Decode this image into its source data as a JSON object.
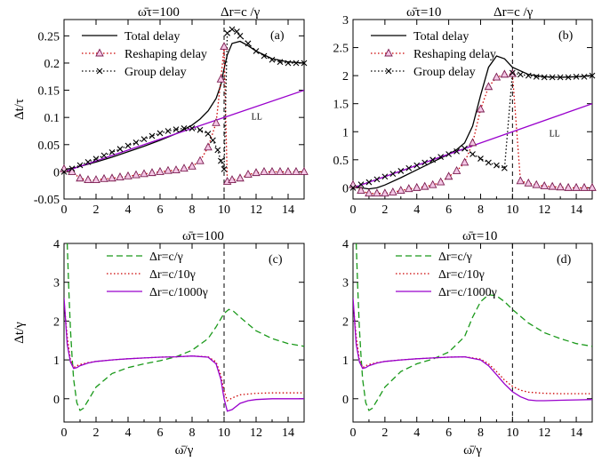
{
  "chart_data": [
    {
      "id": "a",
      "type": "line",
      "panel_label": "(a)",
      "header_left": "ω̄τ=100",
      "header_right": "Δr=c /γ",
      "xlabel": "",
      "ylabel": "Δt/τ",
      "xlim": [
        0,
        15
      ],
      "ylim": [
        -0.05,
        0.28
      ],
      "xticks": [
        0,
        2,
        4,
        6,
        8,
        10,
        12,
        14
      ],
      "xtick_labels": [
        "0",
        "2",
        "4",
        "6",
        "8",
        "10",
        "12",
        "14"
      ],
      "yticks": [
        -0.05,
        0,
        0.05,
        0.1,
        0.15,
        0.2,
        0.25
      ],
      "ytick_labels": [
        "-0.05",
        "0",
        "0.05",
        "0.1",
        "0.15",
        "0.2",
        "0.25"
      ],
      "vline": 10,
      "grid": false,
      "legend_position": "top-left",
      "annotation": {
        "text": "LL",
        "x": 11.7,
        "y": 0.096
      },
      "series": [
        {
          "name": "Total delay",
          "style": "solid",
          "color": "#000000",
          "x": [
            0,
            0.5,
            1,
            2,
            3,
            4,
            5,
            6,
            7,
            8,
            8.5,
            9,
            9.5,
            9.8,
            10,
            10.2,
            10.5,
            11,
            11.5,
            12,
            13,
            14,
            15
          ],
          "y": [
            0.005,
            0.006,
            0.01,
            0.018,
            0.027,
            0.037,
            0.047,
            0.058,
            0.07,
            0.086,
            0.097,
            0.112,
            0.135,
            0.16,
            0.19,
            0.215,
            0.236,
            0.24,
            0.232,
            0.222,
            0.208,
            0.202,
            0.2
          ]
        },
        {
          "name": "Reshaping delay",
          "style": "dotted-triangle",
          "color": "#cc0000",
          "x": [
            0,
            0.5,
            1,
            1.5,
            2,
            2.5,
            3,
            3.5,
            4,
            4.5,
            5,
            5.5,
            6,
            6.5,
            7,
            7.5,
            8,
            8.5,
            9,
            9.5,
            9.8,
            10,
            10.2,
            10.5,
            11,
            11.5,
            12,
            12.5,
            13,
            13.5,
            14,
            14.5,
            15
          ],
          "y": [
            0.005,
            0.0,
            -0.012,
            -0.015,
            -0.015,
            -0.013,
            -0.012,
            -0.01,
            -0.008,
            -0.006,
            -0.004,
            -0.002,
            0.0,
            0.002,
            0.003,
            0.006,
            0.01,
            0.02,
            0.045,
            0.09,
            0.17,
            0.23,
            -0.018,
            -0.015,
            -0.012,
            -0.005,
            -0.002,
            0.0,
            0.0,
            0.0,
            0.0,
            0.0,
            0.0
          ]
        },
        {
          "name": "Group delay",
          "style": "dotted-cross",
          "color": "#000000",
          "x": [
            0,
            0.5,
            1,
            1.5,
            2,
            2.5,
            3,
            3.5,
            4,
            4.5,
            5,
            5.5,
            6,
            6.5,
            7,
            7.5,
            8,
            8.5,
            9,
            9.3,
            9.6,
            9.8,
            10,
            10.2,
            10.5,
            10.8,
            11,
            11.5,
            12,
            12.5,
            13,
            13.5,
            14,
            14.5,
            15
          ],
          "y": [
            0.0,
            0.006,
            0.012,
            0.018,
            0.024,
            0.03,
            0.036,
            0.042,
            0.048,
            0.054,
            0.06,
            0.066,
            0.071,
            0.075,
            0.078,
            0.08,
            0.08,
            0.077,
            0.07,
            0.058,
            0.04,
            0.02,
            0.005,
            0.255,
            0.262,
            0.258,
            0.25,
            0.236,
            0.222,
            0.213,
            0.206,
            0.202,
            0.2,
            0.2,
            0.2
          ]
        },
        {
          "name": "LL",
          "style": "solid",
          "color": "#9900cc",
          "in_legend": false,
          "x": [
            0,
            15
          ],
          "y": [
            0.0,
            0.15
          ]
        }
      ]
    },
    {
      "id": "b",
      "type": "line",
      "panel_label": "(b)",
      "header_left": "ω̄τ=10",
      "header_right": "Δr=c /γ",
      "xlabel": "",
      "ylabel": "",
      "xlim": [
        0,
        15
      ],
      "ylim": [
        -0.2,
        3
      ],
      "xticks": [
        0,
        2,
        4,
        6,
        8,
        10,
        12,
        14
      ],
      "xtick_labels": [
        "0",
        "2",
        "4",
        "6",
        "8",
        "10",
        "12",
        "14"
      ],
      "yticks": [
        0,
        0.5,
        1,
        1.5,
        2,
        2.5,
        3
      ],
      "ytick_labels": [
        "0",
        "0.5",
        "1",
        "1.5",
        "2",
        "2.5",
        "3"
      ],
      "vline": 10,
      "grid": false,
      "legend_position": "top-left",
      "annotation": {
        "text": "LL",
        "x": 12.3,
        "y": 0.92
      },
      "series": [
        {
          "name": "Total delay",
          "style": "solid",
          "color": "#000000",
          "x": [
            0,
            0.5,
            1,
            1.5,
            2,
            3,
            4,
            5,
            6,
            6.5,
            7,
            7.5,
            8,
            8.5,
            9,
            9.5,
            10,
            11,
            12,
            13,
            14,
            15
          ],
          "y": [
            0.02,
            0.0,
            -0.02,
            0.0,
            0.05,
            0.18,
            0.32,
            0.46,
            0.6,
            0.68,
            0.8,
            1.1,
            1.65,
            2.15,
            2.35,
            2.3,
            2.15,
            2.02,
            1.98,
            1.97,
            1.98,
            2.0
          ]
        },
        {
          "name": "Reshaping delay",
          "style": "dotted-triangle",
          "color": "#cc0000",
          "x": [
            0,
            0.5,
            1,
            1.5,
            2,
            2.5,
            3,
            3.5,
            4,
            4.5,
            5,
            5.5,
            6,
            6.5,
            7,
            7.5,
            8,
            8.5,
            9,
            9.5,
            10,
            10.5,
            11,
            11.5,
            12,
            12.5,
            13,
            13.5,
            14,
            14.5,
            15
          ],
          "y": [
            0.05,
            -0.05,
            -0.1,
            -0.1,
            -0.1,
            -0.08,
            -0.05,
            -0.02,
            0.0,
            0.02,
            0.05,
            0.1,
            0.2,
            0.3,
            0.45,
            0.8,
            1.4,
            1.8,
            1.97,
            2.02,
            2.03,
            0.12,
            0.08,
            0.05,
            0.03,
            0.02,
            0.01,
            0.0,
            0.0,
            0.0,
            0.0
          ]
        },
        {
          "name": "Group delay",
          "style": "dotted-cross",
          "color": "#000000",
          "x": [
            0,
            0.5,
            1,
            1.5,
            2,
            2.5,
            3,
            3.5,
            4,
            4.5,
            5,
            5.5,
            6,
            6.5,
            7,
            7.5,
            8,
            8.5,
            9,
            9.5,
            10,
            10.5,
            11,
            11.5,
            12,
            12.5,
            13,
            13.5,
            14,
            14.5,
            15
          ],
          "y": [
            0.0,
            0.06,
            0.1,
            0.15,
            0.2,
            0.25,
            0.3,
            0.35,
            0.4,
            0.45,
            0.5,
            0.55,
            0.6,
            0.65,
            0.7,
            0.6,
            0.52,
            0.45,
            0.4,
            0.35,
            2.05,
            2.02,
            2.0,
            1.98,
            1.97,
            1.97,
            1.97,
            1.97,
            1.98,
            1.98,
            2.0
          ]
        },
        {
          "name": "LL",
          "style": "solid",
          "color": "#9900cc",
          "in_legend": false,
          "x": [
            0,
            15
          ],
          "y": [
            0.0,
            1.5
          ]
        }
      ]
    },
    {
      "id": "c",
      "type": "line",
      "panel_label": "(c)",
      "header_left": "ω̄τ=100",
      "header_right": "",
      "xlabel": "ω̄/γ",
      "ylabel": "Δt/γ",
      "xlim": [
        0,
        15
      ],
      "ylim": [
        -0.6,
        4
      ],
      "xticks": [
        0,
        2,
        4,
        6,
        8,
        10,
        12,
        14
      ],
      "xtick_labels": [
        "0",
        "2",
        "4",
        "6",
        "8",
        "10",
        "12",
        "14"
      ],
      "yticks": [
        0,
        1,
        2,
        3,
        4
      ],
      "ytick_labels": [
        "0",
        "1",
        "2",
        "3",
        "4"
      ],
      "vline": 10,
      "grid": false,
      "legend_position": "top-center",
      "series": [
        {
          "name": "Δr=c/γ",
          "style": "dashed",
          "color": "#1a991a",
          "x": [
            0.2,
            0.3,
            0.4,
            0.5,
            0.6,
            0.8,
            1.0,
            1.2,
            1.5,
            2,
            3,
            4,
            5,
            6,
            7,
            8,
            9,
            9.5,
            10,
            10.3,
            10.6,
            11,
            12,
            13,
            14,
            15
          ],
          "y": [
            4.0,
            2.8,
            1.8,
            1.1,
            0.5,
            -0.1,
            -0.3,
            -0.25,
            -0.05,
            0.3,
            0.65,
            0.8,
            0.9,
            0.98,
            1.08,
            1.25,
            1.55,
            1.85,
            2.2,
            2.3,
            2.25,
            2.1,
            1.75,
            1.55,
            1.42,
            1.35
          ]
        },
        {
          "name": "Δr=c/10γ",
          "style": "dotted",
          "color": "#cc0000",
          "x": [
            0,
            0.2,
            0.4,
            0.6,
            0.8,
            1.0,
            1.5,
            2,
            3,
            4,
            5,
            6,
            7,
            8,
            9,
            9.5,
            9.8,
            10,
            10.2,
            10.5,
            11,
            12,
            13,
            14,
            15
          ],
          "y": [
            2.5,
            1.6,
            1.0,
            0.8,
            0.85,
            0.88,
            0.93,
            0.96,
            1.0,
            1.03,
            1.05,
            1.07,
            1.08,
            1.1,
            1.08,
            0.95,
            0.6,
            0.2,
            -0.05,
            0.02,
            0.1,
            0.14,
            0.15,
            0.15,
            0.15
          ]
        },
        {
          "name": "Δr=c/1000γ",
          "style": "solid",
          "color": "#9900cc",
          "x": [
            0,
            0.2,
            0.4,
            0.6,
            0.8,
            1.0,
            1.5,
            2,
            3,
            4,
            5,
            6,
            7,
            8,
            9,
            9.5,
            9.8,
            10,
            10.2,
            10.5,
            11,
            11.5,
            12,
            13,
            14,
            15
          ],
          "y": [
            2.6,
            1.4,
            0.95,
            0.78,
            0.8,
            0.85,
            0.92,
            0.96,
            1.0,
            1.03,
            1.05,
            1.07,
            1.08,
            1.1,
            1.07,
            0.9,
            0.5,
            0.0,
            -0.32,
            -0.28,
            -0.12,
            -0.05,
            -0.02,
            0.0,
            0.0,
            0.0
          ]
        }
      ]
    },
    {
      "id": "d",
      "type": "line",
      "panel_label": "(d)",
      "header_left": "ω̄τ=10",
      "header_right": "",
      "xlabel": "ω̄/γ",
      "ylabel": "",
      "xlim": [
        0,
        15
      ],
      "ylim": [
        -0.6,
        4
      ],
      "xticks": [
        0,
        2,
        4,
        6,
        8,
        10,
        12,
        14
      ],
      "xtick_labels": [
        "0",
        "2",
        "4",
        "6",
        "8",
        "10",
        "12",
        "14"
      ],
      "yticks": [
        0,
        1,
        2,
        3,
        4
      ],
      "ytick_labels": [
        "0",
        "1",
        "2",
        "3",
        "4"
      ],
      "vline": 10,
      "grid": false,
      "legend_position": "top-center",
      "series": [
        {
          "name": "Δr=c/γ",
          "style": "dashed",
          "color": "#1a991a",
          "x": [
            0.2,
            0.3,
            0.4,
            0.5,
            0.6,
            0.8,
            1.0,
            1.2,
            1.5,
            2,
            3,
            4,
            5,
            6,
            7,
            7.5,
            8,
            8.5,
            9,
            9.5,
            10,
            11,
            12,
            13,
            14,
            15
          ],
          "y": [
            4.0,
            2.8,
            1.8,
            1.1,
            0.5,
            -0.1,
            -0.3,
            -0.25,
            -0.05,
            0.3,
            0.7,
            0.9,
            1.02,
            1.2,
            1.6,
            2.1,
            2.5,
            2.68,
            2.65,
            2.5,
            2.3,
            1.95,
            1.7,
            1.55,
            1.42,
            1.35
          ]
        },
        {
          "name": "Δr=c/10γ",
          "style": "dotted",
          "color": "#cc0000",
          "x": [
            0,
            0.2,
            0.4,
            0.6,
            0.8,
            1.0,
            1.5,
            2,
            3,
            4,
            5,
            6,
            7,
            8,
            8.5,
            9,
            9.5,
            10,
            10.5,
            11,
            12,
            13,
            14,
            15
          ],
          "y": [
            2.5,
            1.6,
            1.0,
            0.8,
            0.85,
            0.88,
            0.93,
            0.96,
            1.0,
            1.03,
            1.05,
            1.07,
            1.08,
            1.02,
            0.9,
            0.7,
            0.48,
            0.32,
            0.22,
            0.17,
            0.14,
            0.13,
            0.13,
            0.13
          ]
        },
        {
          "name": "Δr=c/1000γ",
          "style": "solid",
          "color": "#9900cc",
          "x": [
            0,
            0.2,
            0.4,
            0.6,
            0.8,
            1.0,
            1.5,
            2,
            3,
            4,
            5,
            6,
            7,
            8,
            8.5,
            9,
            9.5,
            10,
            10.5,
            11,
            11.5,
            12,
            13,
            14,
            15
          ],
          "y": [
            2.6,
            1.4,
            0.95,
            0.78,
            0.8,
            0.85,
            0.92,
            0.96,
            1.0,
            1.03,
            1.05,
            1.07,
            1.08,
            1.0,
            0.85,
            0.62,
            0.38,
            0.18,
            0.05,
            -0.03,
            -0.05,
            -0.05,
            -0.04,
            -0.03,
            -0.02
          ]
        }
      ]
    }
  ]
}
